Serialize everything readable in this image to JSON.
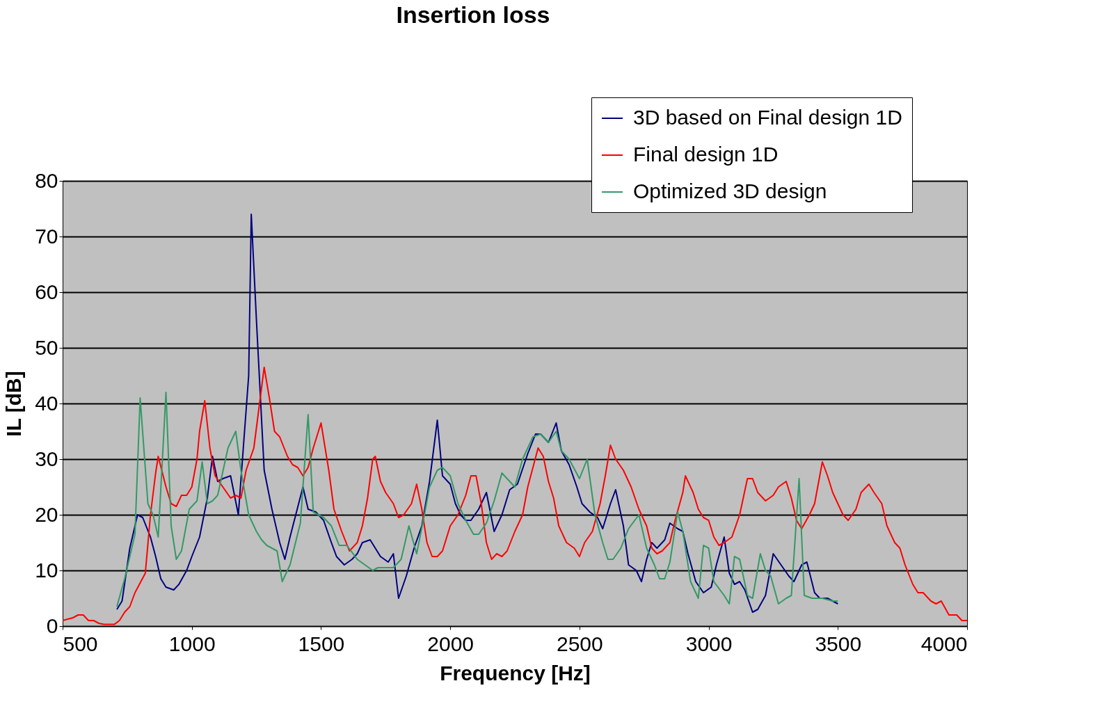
{
  "chart_data": {
    "type": "line",
    "title": "Insertion loss",
    "xlabel": "Frequency [Hz]",
    "ylabel": "IL [dB]",
    "xlim": [
      500,
      4000
    ],
    "xticks": [
      500,
      1000,
      1500,
      2000,
      2500,
      3000,
      3500,
      4000
    ],
    "ylim": [
      0,
      80
    ],
    "yticks": [
      0,
      10,
      20,
      30,
      40,
      50,
      60,
      70,
      80
    ],
    "grid": "y",
    "legend": "top right",
    "marker": "none",
    "line_style": "solid",
    "series": [
      {
        "name": "3D based on Final design 1D",
        "color": "#000080",
        "x": [
          710,
          730,
          760,
          790,
          810,
          840,
          860,
          880,
          900,
          930,
          950,
          980,
          1000,
          1030,
          1060,
          1080,
          1100,
          1120,
          1150,
          1180,
          1220,
          1230,
          1250,
          1280,
          1310,
          1340,
          1360,
          1380,
          1430,
          1450,
          1480,
          1510,
          1540,
          1560,
          1590,
          1620,
          1640,
          1660,
          1690,
          1730,
          1760,
          1780,
          1800,
          1830,
          1860,
          1890,
          1920,
          1950,
          1970,
          2000,
          2020,
          2040,
          2060,
          2080,
          2110,
          2140,
          2170,
          2200,
          2230,
          2260,
          2300,
          2330,
          2350,
          2380,
          2410,
          2430,
          2460,
          2490,
          2510,
          2540,
          2570,
          2590,
          2620,
          2640,
          2670,
          2690,
          2720,
          2740,
          2760,
          2780,
          2800,
          2830,
          2850,
          2880,
          2900,
          2920,
          2950,
          2980,
          3010,
          3030,
          3060,
          3080,
          3100,
          3120,
          3140,
          3170,
          3190,
          3220,
          3250,
          3280,
          3310,
          3330,
          3360,
          3380,
          3410,
          3430,
          3460,
          3480,
          3500
        ],
        "values": [
          3,
          4.5,
          14,
          20,
          19.5,
          16,
          12.5,
          8.5,
          7,
          6.5,
          7.5,
          10,
          12.5,
          16,
          23,
          30.5,
          26,
          26.5,
          27,
          20,
          45,
          74,
          55,
          28,
          21,
          15,
          12,
          16,
          25,
          21,
          20.5,
          19,
          15,
          12.5,
          11,
          12,
          13,
          15,
          15.5,
          12.5,
          11.5,
          13,
          5,
          9,
          14,
          18,
          26,
          37,
          27,
          25.5,
          22,
          20,
          19,
          19,
          21,
          24,
          17,
          20,
          24.5,
          25.5,
          31,
          34.5,
          34.5,
          33,
          36.5,
          31.5,
          29,
          25,
          22,
          20.5,
          19.5,
          17.5,
          22,
          24.5,
          18,
          11,
          10,
          8,
          12,
          15,
          14,
          15.5,
          18.5,
          17.5,
          17,
          13,
          8,
          6,
          7,
          11,
          16,
          9.5,
          7.5,
          8,
          6.5,
          2.5,
          3,
          5.5,
          13,
          11,
          9,
          8,
          11,
          11.5,
          6,
          5,
          5,
          4.5,
          4
        ]
      },
      {
        "name": "Final design 1D",
        "color": "#ff0000",
        "x": [
          500,
          540,
          560,
          580,
          600,
          620,
          640,
          660,
          700,
          720,
          740,
          760,
          780,
          820,
          840,
          860,
          870,
          900,
          920,
          940,
          960,
          980,
          1000,
          1020,
          1030,
          1050,
          1070,
          1090,
          1120,
          1150,
          1170,
          1190,
          1210,
          1240,
          1280,
          1300,
          1320,
          1340,
          1370,
          1390,
          1410,
          1430,
          1450,
          1470,
          1500,
          1530,
          1550,
          1580,
          1610,
          1640,
          1660,
          1680,
          1700,
          1710,
          1730,
          1750,
          1780,
          1800,
          1820,
          1850,
          1870,
          1890,
          1910,
          1930,
          1950,
          1970,
          2000,
          2030,
          2060,
          2080,
          2100,
          2120,
          2140,
          2160,
          2180,
          2200,
          2220,
          2250,
          2280,
          2300,
          2340,
          2360,
          2380,
          2400,
          2420,
          2450,
          2480,
          2500,
          2520,
          2550,
          2580,
          2600,
          2620,
          2640,
          2670,
          2700,
          2730,
          2760,
          2780,
          2800,
          2820,
          2850,
          2870,
          2900,
          2910,
          2940,
          2960,
          2980,
          3000,
          3020,
          3040,
          3060,
          3090,
          3120,
          3150,
          3170,
          3190,
          3220,
          3250,
          3270,
          3300,
          3320,
          3340,
          3360,
          3390,
          3410,
          3440,
          3460,
          3480,
          3520,
          3540,
          3570,
          3590,
          3620,
          3640,
          3670,
          3690,
          3720,
          3740,
          3760,
          3790,
          3810,
          3830,
          3860,
          3880,
          3900,
          3930,
          3960,
          3980,
          4000
        ],
        "values": [
          1,
          1.5,
          2,
          2,
          1,
          1,
          0.5,
          0.3,
          0.3,
          1,
          2.5,
          3.5,
          6,
          9.5,
          20,
          27.5,
          30.5,
          25,
          22,
          21.5,
          23.5,
          23.5,
          25,
          30,
          35,
          40.5,
          32,
          27,
          25,
          23,
          23.5,
          23,
          28,
          32,
          46.5,
          41,
          35,
          34,
          30.5,
          29,
          28.5,
          27,
          28.5,
          32,
          36.5,
          28,
          21,
          17,
          13.5,
          15,
          18,
          23,
          30,
          30.5,
          26,
          24,
          22,
          19.5,
          20,
          22,
          25.5,
          21,
          15,
          12.5,
          12.5,
          13.5,
          18,
          20,
          23.5,
          27,
          27,
          22,
          15,
          12,
          13,
          12.5,
          13.5,
          17,
          20,
          25,
          32,
          30.5,
          26,
          23,
          18,
          15,
          14,
          12.5,
          15,
          17,
          22,
          27,
          32.5,
          30,
          28,
          25,
          21,
          18,
          14,
          13,
          13.5,
          15,
          19,
          24,
          27,
          24,
          21,
          19.5,
          19,
          16,
          14.5,
          15,
          16,
          20,
          26.5,
          26.5,
          24,
          22.5,
          23.5,
          25,
          26,
          23,
          19,
          17.5,
          20,
          22,
          29.5,
          27,
          24,
          20,
          19,
          21,
          24,
          25.5,
          24,
          22,
          18,
          15,
          14,
          11,
          7.5,
          6,
          6,
          4.5,
          4,
          4.5,
          2,
          2,
          1,
          1
        ]
      },
      {
        "name": "Optimized 3D design",
        "color": "#339966",
        "x": [
          710,
          740,
          780,
          800,
          830,
          850,
          870,
          900,
          920,
          940,
          960,
          990,
          1020,
          1040,
          1060,
          1080,
          1100,
          1140,
          1170,
          1190,
          1220,
          1250,
          1270,
          1290,
          1330,
          1350,
          1380,
          1420,
          1450,
          1470,
          1490,
          1510,
          1540,
          1570,
          1600,
          1640,
          1670,
          1700,
          1720,
          1780,
          1810,
          1840,
          1870,
          1900,
          1920,
          1950,
          1970,
          2000,
          2030,
          2060,
          2090,
          2110,
          2140,
          2170,
          2200,
          2230,
          2250,
          2280,
          2320,
          2350,
          2380,
          2410,
          2430,
          2460,
          2500,
          2530,
          2560,
          2590,
          2610,
          2630,
          2660,
          2690,
          2730,
          2760,
          2790,
          2810,
          2830,
          2850,
          2880,
          2900,
          2930,
          2960,
          2980,
          3000,
          3020,
          3060,
          3080,
          3100,
          3120,
          3150,
          3170,
          3200,
          3220,
          3240,
          3270,
          3300,
          3320,
          3350,
          3370,
          3400,
          3440,
          3480,
          3500
        ],
        "values": [
          3.5,
          8.5,
          16.5,
          41,
          22,
          20,
          16,
          42,
          18,
          12,
          13.5,
          21,
          22.5,
          29.5,
          22,
          22.5,
          23.5,
          32,
          35,
          28,
          20,
          17,
          15.5,
          14.5,
          13.5,
          8,
          11,
          18.5,
          38,
          20.5,
          20,
          19.5,
          18,
          14.5,
          14.5,
          12,
          11,
          10,
          10.5,
          10.5,
          12,
          18,
          13,
          20,
          25,
          28,
          28.5,
          27,
          22,
          19,
          16.5,
          16.5,
          18.5,
          22.5,
          27.5,
          26,
          25,
          30,
          34,
          34.5,
          33,
          35,
          31.5,
          30,
          26.5,
          30,
          20,
          15,
          12,
          12,
          14,
          17.5,
          20,
          14,
          11,
          8.5,
          8.5,
          11.5,
          20.5,
          17,
          8,
          5,
          14.5,
          14,
          8,
          5.5,
          4,
          12.5,
          12,
          5.5,
          5,
          13,
          10,
          9,
          4,
          5,
          5.5,
          26.5,
          5.5,
          5,
          5,
          4.5,
          4.5
        ]
      }
    ]
  }
}
